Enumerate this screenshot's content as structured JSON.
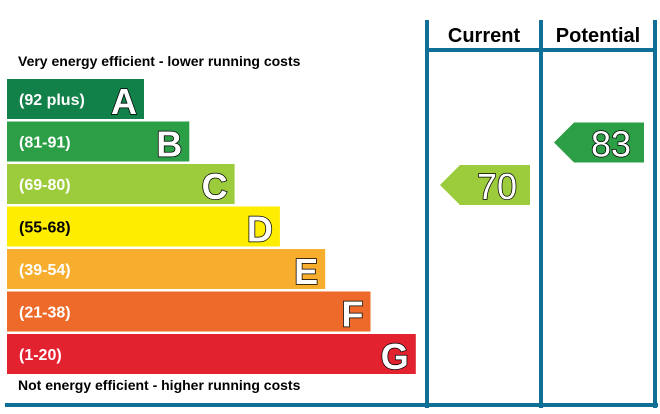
{
  "chart_data": {
    "type": "bar",
    "top_caption": "Very energy efficient - lower running costs",
    "bottom_caption": "Not energy efficient - higher running costs",
    "column_headers": {
      "current": "Current",
      "potential": "Potential"
    },
    "bands": [
      {
        "range": "(92 plus)",
        "letter": "A",
        "color": "#128049"
      },
      {
        "range": "(81-91)",
        "letter": "B",
        "color": "#2c9f46"
      },
      {
        "range": "(69-80)",
        "letter": "C",
        "color": "#9ccc3c"
      },
      {
        "range": "(55-68)",
        "letter": "D",
        "color": "#ffed00"
      },
      {
        "range": "(39-54)",
        "letter": "E",
        "color": "#f7ae2e"
      },
      {
        "range": "(21-38)",
        "letter": "F",
        "color": "#ed6a2a"
      },
      {
        "range": "(1-20)",
        "letter": "G",
        "color": "#e3222f"
      }
    ],
    "current": {
      "value": 70,
      "band": "C",
      "color": "#9ccc3c"
    },
    "potential": {
      "value": 83,
      "band": "B",
      "color": "#2c9f46"
    },
    "frame_color": "#0f6f96"
  }
}
